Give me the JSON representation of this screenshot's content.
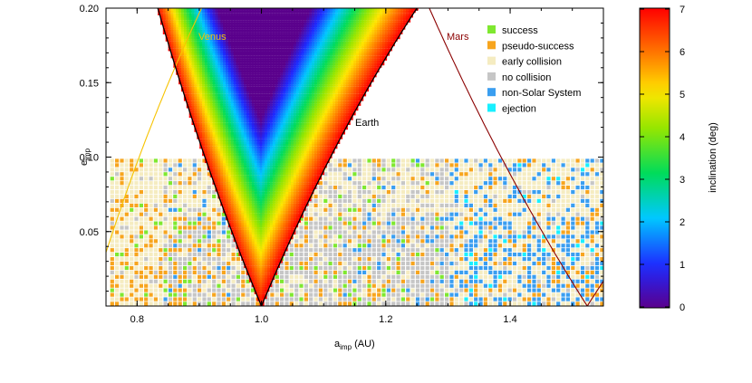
{
  "chart_data": {
    "type": "scatter",
    "xlabel": "a",
    "xlabel_sub": "imp",
    "xlabel_unit": "(AU)",
    "ylabel": "e",
    "ylabel_sub": "imp",
    "xlim": [
      0.75,
      1.55
    ],
    "ylim": [
      0.0,
      0.2
    ],
    "xticks": [
      0.8,
      1.0,
      1.2,
      1.4
    ],
    "xtick_labels": [
      "0.8",
      "1.0",
      "1.2",
      "1.4"
    ],
    "yticks": [
      0.05,
      0.1,
      0.15,
      0.2
    ],
    "ytick_labels": [
      "0.05",
      "0.10",
      "0.15",
      "0.20"
    ],
    "grid": false,
    "legend_position": "top-right",
    "legend": [
      {
        "label": "success",
        "color": "#7fe830"
      },
      {
        "label": "pseudo-success",
        "color": "#f7a51e"
      },
      {
        "label": "early collision",
        "color": "#f5ecc1"
      },
      {
        "label": "no collision",
        "color": "#c6c6c6"
      },
      {
        "label": "non-Solar System",
        "color": "#3a9ef0"
      },
      {
        "label": "ejection",
        "color": "#19f0ff"
      }
    ],
    "planets": [
      {
        "label": "Venus",
        "a": 0.723,
        "color": "#f7c300"
      },
      {
        "label": "Earth",
        "a": 1.0,
        "color": "#000000"
      },
      {
        "label": "Mars",
        "a": 1.524,
        "color": "#8b0000"
      }
    ],
    "earth_region": {
      "a_center": 1.0,
      "min_e_at_top": 0.12,
      "color_variable": "inclination (deg)"
    },
    "grid_samples": {
      "a_range": [
        0.76,
        1.55
      ],
      "e_range": [
        0.0,
        0.1
      ],
      "e_max": 0.1
    },
    "colorbar": {
      "label": "inclination (deg)",
      "range": [
        0,
        7
      ],
      "ticks": [
        0,
        1,
        2,
        3,
        4,
        5,
        6,
        7
      ],
      "tick_labels": [
        "0",
        "1",
        "2",
        "3",
        "4",
        "5",
        "6",
        "7"
      ],
      "colormap": "rainbow"
    }
  }
}
